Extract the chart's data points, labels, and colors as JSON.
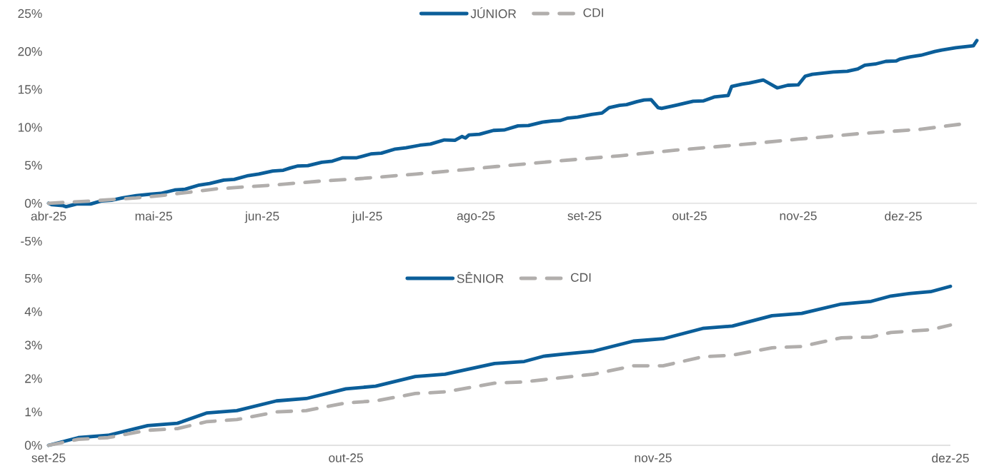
{
  "chart_data": [
    {
      "type": "line",
      "xlim": [
        "2025-04-01",
        "2025-12-22"
      ],
      "ylim": [
        -5,
        25
      ],
      "xticks": [
        {
          "value": "2025-04-01",
          "label": "abr-25"
        },
        {
          "value": "2025-05-01",
          "label": "mai-25"
        },
        {
          "value": "2025-06-01",
          "label": "jun-25"
        },
        {
          "value": "2025-07-01",
          "label": "jul-25"
        },
        {
          "value": "2025-08-01",
          "label": "ago-25"
        },
        {
          "value": "2025-09-01",
          "label": "set-25"
        },
        {
          "value": "2025-10-01",
          "label": "out-25"
        },
        {
          "value": "2025-11-01",
          "label": "nov-25"
        },
        {
          "value": "2025-12-01",
          "label": "dez-25"
        }
      ],
      "yticks": [
        {
          "value": -5,
          "label": "-5%"
        },
        {
          "value": 0,
          "label": "0%"
        },
        {
          "value": 5,
          "label": "5%"
        },
        {
          "value": 10,
          "label": "10%"
        },
        {
          "value": 15,
          "label": "15%"
        },
        {
          "value": 20,
          "label": "20%"
        },
        {
          "value": 25,
          "label": "25%"
        }
      ],
      "grid": false,
      "legend": "top",
      "series": [
        {
          "name": "JÚNIOR",
          "color": "#0b5e99",
          "line_style": "solid",
          "x": [
            "2025-04-01",
            "2025-04-02",
            "2025-04-05",
            "2025-04-06",
            "2025-04-09",
            "2025-04-13",
            "2025-04-16",
            "2025-04-19",
            "2025-04-22",
            "2025-04-26",
            "2025-04-30",
            "2025-05-03",
            "2025-05-07",
            "2025-05-10",
            "2025-05-14",
            "2025-05-17",
            "2025-05-21",
            "2025-05-24",
            "2025-05-28",
            "2025-05-31",
            "2025-06-04",
            "2025-06-07",
            "2025-06-09",
            "2025-06-11",
            "2025-06-14",
            "2025-06-18",
            "2025-06-21",
            "2025-06-24",
            "2025-06-28",
            "2025-07-02",
            "2025-07-05",
            "2025-07-09",
            "2025-07-12",
            "2025-07-16",
            "2025-07-19",
            "2025-07-23",
            "2025-07-26",
            "2025-07-28",
            "2025-07-29",
            "2025-07-30",
            "2025-08-02",
            "2025-08-06",
            "2025-08-09",
            "2025-08-13",
            "2025-08-16",
            "2025-08-20",
            "2025-08-23",
            "2025-08-25",
            "2025-08-27",
            "2025-08-30",
            "2025-09-03",
            "2025-09-06",
            "2025-09-08",
            "2025-09-11",
            "2025-09-13",
            "2025-09-16",
            "2025-09-18",
            "2025-09-20",
            "2025-09-22",
            "2025-09-23",
            "2025-09-27",
            "2025-10-02",
            "2025-10-05",
            "2025-10-08",
            "2025-10-12",
            "2025-10-13",
            "2025-10-16",
            "2025-10-18",
            "2025-10-22",
            "2025-10-26",
            "2025-10-29",
            "2025-11-01",
            "2025-11-03",
            "2025-11-05",
            "2025-11-08",
            "2025-11-11",
            "2025-11-15",
            "2025-11-18",
            "2025-11-20",
            "2025-11-23",
            "2025-11-26",
            "2025-11-29",
            "2025-11-30",
            "2025-12-03",
            "2025-12-06",
            "2025-12-10",
            "2025-12-12",
            "2025-12-16",
            "2025-12-21",
            "2025-12-22"
          ],
          "values": [
            0,
            -0.2,
            -0.3,
            -0.45,
            -0.1,
            -0.1,
            0.3,
            0.4,
            0.7,
            1.0,
            1.2,
            1.3,
            1.75,
            1.85,
            2.4,
            2.6,
            3.05,
            3.15,
            3.65,
            3.85,
            4.25,
            4.35,
            4.65,
            4.9,
            4.95,
            5.4,
            5.55,
            6.0,
            6.0,
            6.5,
            6.6,
            7.15,
            7.3,
            7.65,
            7.8,
            8.35,
            8.3,
            8.8,
            8.6,
            9.0,
            9.1,
            9.6,
            9.65,
            10.2,
            10.25,
            10.7,
            10.85,
            10.9,
            11.2,
            11.35,
            11.7,
            11.9,
            12.6,
            12.9,
            13.0,
            13.4,
            13.6,
            13.65,
            12.6,
            12.5,
            12.9,
            13.45,
            13.5,
            14.0,
            14.2,
            15.4,
            15.7,
            15.85,
            16.25,
            15.2,
            15.55,
            15.6,
            16.75,
            17.0,
            17.15,
            17.3,
            17.4,
            17.7,
            18.2,
            18.35,
            18.7,
            18.75,
            19.0,
            19.3,
            19.5,
            20.0,
            20.2,
            20.5,
            20.75,
            21.45
          ]
        },
        {
          "name": "CDI",
          "color": "#b1aeac",
          "line_style": "dashed",
          "x": [
            "2025-04-01",
            "2025-04-13",
            "2025-04-26",
            "2025-05-03",
            "2025-05-19",
            "2025-06-04",
            "2025-06-17",
            "2025-06-29",
            "2025-07-15",
            "2025-07-28",
            "2025-08-07",
            "2025-08-25",
            "2025-09-11",
            "2025-09-27",
            "2025-10-15",
            "2025-11-01",
            "2025-11-19",
            "2025-12-06",
            "2025-12-17"
          ],
          "values": [
            0,
            0.3,
            0.7,
            1.0,
            1.9,
            2.4,
            2.9,
            3.25,
            3.85,
            4.4,
            4.85,
            5.6,
            6.25,
            7.0,
            7.7,
            8.45,
            9.2,
            9.75,
            10.4
          ]
        }
      ]
    },
    {
      "type": "line",
      "xlim": [
        "2025-09-01",
        "2025-12-01"
      ],
      "ylim": [
        0,
        5
      ],
      "xticks": [
        {
          "value": "2025-09-01",
          "label": "set-25"
        },
        {
          "value": "2025-10-01",
          "label": "out-25"
        },
        {
          "value": "2025-11-01",
          "label": "nov-25"
        },
        {
          "value": "2025-12-01",
          "label": "dez-25"
        }
      ],
      "yticks": [
        {
          "value": 0,
          "label": "0%"
        },
        {
          "value": 1,
          "label": "1%"
        },
        {
          "value": 2,
          "label": "2%"
        },
        {
          "value": 3,
          "label": "3%"
        },
        {
          "value": 4,
          "label": "4%"
        },
        {
          "value": 5,
          "label": "5%"
        }
      ],
      "grid": false,
      "legend": "top",
      "series": [
        {
          "name": "SÊNIOR",
          "color": "#0b5e99",
          "line_style": "solid",
          "x": [
            "2025-09-01",
            "2025-09-04",
            "2025-09-07",
            "2025-09-11",
            "2025-09-14",
            "2025-09-17",
            "2025-09-20",
            "2025-09-24",
            "2025-09-27",
            "2025-10-01",
            "2025-10-04",
            "2025-10-08",
            "2025-10-11",
            "2025-10-16",
            "2025-10-19",
            "2025-10-21",
            "2025-10-23",
            "2025-10-26",
            "2025-10-30",
            "2025-11-02",
            "2025-11-06",
            "2025-11-09",
            "2025-11-13",
            "2025-11-16",
            "2025-11-20",
            "2025-11-23",
            "2025-11-25",
            "2025-11-27",
            "2025-11-29",
            "2025-12-01"
          ],
          "values": [
            0,
            0.23,
            0.3,
            0.59,
            0.66,
            0.97,
            1.04,
            1.33,
            1.4,
            1.69,
            1.77,
            2.06,
            2.13,
            2.45,
            2.51,
            2.67,
            2.73,
            2.82,
            3.12,
            3.19,
            3.5,
            3.57,
            3.88,
            3.95,
            4.23,
            4.31,
            4.47,
            4.55,
            4.6,
            4.76
          ]
        },
        {
          "name": "CDI",
          "color": "#b1aeac",
          "line_style": "dashed",
          "x": [
            "2025-09-01",
            "2025-09-04",
            "2025-09-07",
            "2025-09-11",
            "2025-09-14",
            "2025-09-17",
            "2025-09-20",
            "2025-09-24",
            "2025-09-27",
            "2025-10-01",
            "2025-10-04",
            "2025-10-08",
            "2025-10-11",
            "2025-10-16",
            "2025-10-19",
            "2025-10-26",
            "2025-10-30",
            "2025-11-02",
            "2025-11-06",
            "2025-11-09",
            "2025-11-13",
            "2025-11-16",
            "2025-11-20",
            "2025-11-23",
            "2025-11-25",
            "2025-11-29",
            "2025-12-01"
          ],
          "values": [
            0,
            0.18,
            0.23,
            0.45,
            0.5,
            0.71,
            0.77,
            1.0,
            1.04,
            1.27,
            1.33,
            1.55,
            1.6,
            1.86,
            1.9,
            2.13,
            2.38,
            2.38,
            2.65,
            2.7,
            2.92,
            2.96,
            3.22,
            3.24,
            3.38,
            3.46,
            3.6
          ]
        }
      ]
    }
  ]
}
